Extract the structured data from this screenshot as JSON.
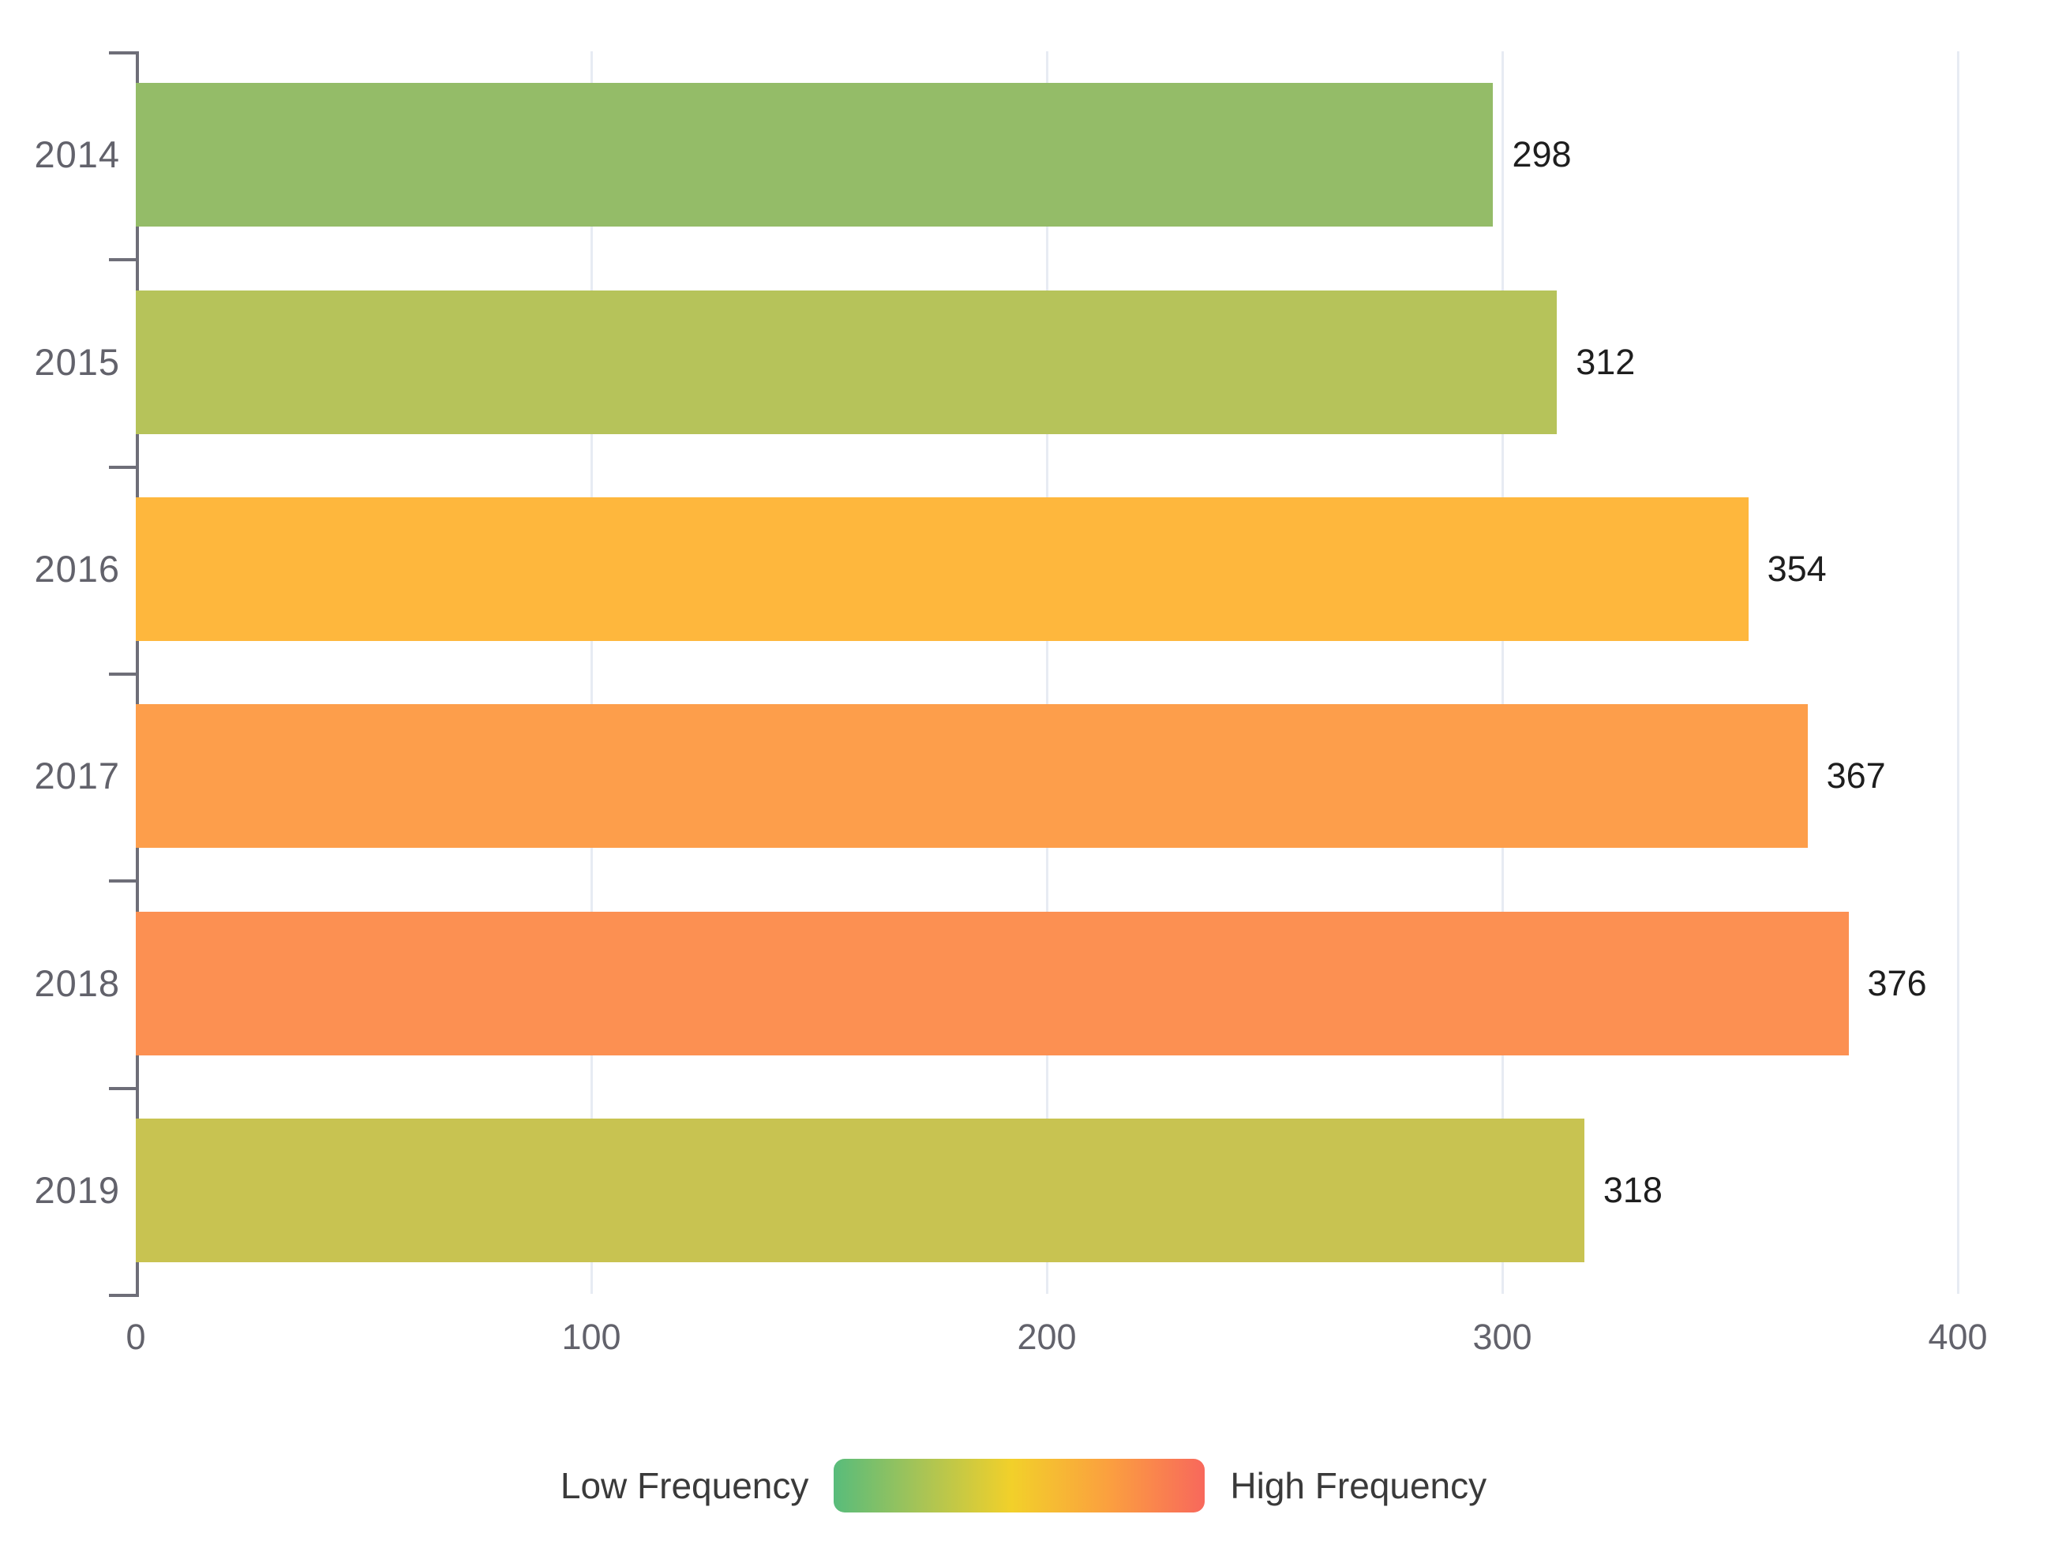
{
  "chart_data": {
    "type": "bar",
    "orientation": "horizontal",
    "title": "",
    "xlabel": "",
    "ylabel": "",
    "categories": [
      "2014",
      "2015",
      "2016",
      "2017",
      "2018",
      "2019"
    ],
    "values": [
      298,
      312,
      354,
      367,
      376,
      318
    ],
    "value_labels": [
      "298",
      "312",
      "354",
      "367",
      "376",
      "318"
    ],
    "bar_colors": [
      "#94bc68",
      "#b6c35a",
      "#feb73d",
      "#fd9e4b",
      "#fc9052",
      "#c8c351"
    ],
    "x_ticks": [
      0,
      100,
      200,
      300,
      400
    ],
    "x_tick_labels": [
      "0",
      "100",
      "200",
      "300",
      "400"
    ],
    "xlim": [
      0,
      400
    ],
    "grid": true,
    "legend_position": "bottom-center",
    "legend": {
      "low_label": "Low Frequency",
      "high_label": "High Frequency",
      "gradient_colors": [
        "#58bc7b",
        "#a9c455",
        "#f2d02a",
        "#fba03f",
        "#f8685c"
      ]
    }
  },
  "colors": {
    "background": "#ffffff",
    "axis_line": "#6e6e78",
    "grid_line": "#e7ebf3",
    "tick_label": "#62626b",
    "value_label": "#1e1e1e",
    "legend_text": "#3a3a3a"
  }
}
